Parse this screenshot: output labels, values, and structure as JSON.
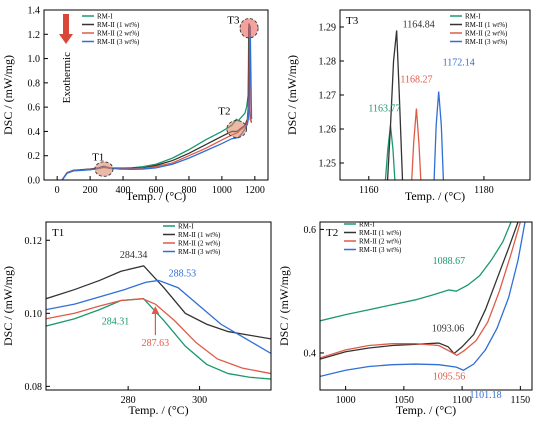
{
  "colors": {
    "rm1": "#1a9a6b",
    "rm2_1": "#333333",
    "rm2_2": "#e05a48",
    "rm2_3": "#2f6fd6",
    "exo_arrow": "#d9473a",
    "marker_t1_t2": "#d98060",
    "marker_t3": "#e8574f"
  },
  "chart_data": [
    {
      "id": "panel-overview",
      "type": "line",
      "xlabel": "Temp. / (°C)",
      "ylabel": "DSC / (mW/mg)",
      "xlim": [
        -80,
        1280
      ],
      "ylim": [
        0.0,
        1.4
      ],
      "xticks": [
        0,
        200,
        400,
        600,
        800,
        1000,
        1200
      ],
      "yticks": [
        0.0,
        0.2,
        0.4,
        0.6,
        0.8,
        1.0,
        1.2,
        1.4
      ],
      "ytick_labels": [
        "0.0",
        "0.2",
        "0.4",
        "0.6",
        "0.8",
        "1.0",
        "1.2",
        "1.4"
      ],
      "legend": [
        "RM-I",
        "RM-II (1 wt%)",
        "RM-II (2 wt%)",
        "RM-II (3 wt%)"
      ],
      "legend_position": "top-left",
      "exotherm_label": "Exothermic",
      "markers": [
        {
          "label": "T1",
          "x": 284,
          "y": 0.09,
          "rx_data": 55,
          "ry_data": 0.06,
          "color_key": "marker_t1_t2",
          "label_dx": -35,
          "label_dy": 0.07
        },
        {
          "label": "T2",
          "x": 1090,
          "y": 0.42,
          "rx_data": 60,
          "ry_data": 0.07,
          "color_key": "marker_t1_t2",
          "label_dx": -75,
          "label_dy": 0.12
        },
        {
          "label": "T3",
          "x": 1165,
          "y": 1.25,
          "rx_data": 55,
          "ry_data": 0.08,
          "color_key": "marker_t3",
          "label_dx": -95,
          "label_dy": 0.04
        }
      ],
      "series": [
        {
          "name": "RM-I",
          "color_key": "rm1",
          "x": [
            30,
            60,
            100,
            150,
            200,
            250,
            284,
            320,
            380,
            450,
            520,
            600,
            700,
            800,
            900,
            1000,
            1060,
            1088,
            1100,
            1140,
            1150,
            1160,
            1163,
            1165,
            1168,
            1172,
            1180
          ],
          "y": [
            0.0,
            0.06,
            0.08,
            0.082,
            0.085,
            0.095,
            0.104,
            0.095,
            0.095,
            0.1,
            0.11,
            0.13,
            0.18,
            0.25,
            0.33,
            0.4,
            0.45,
            0.5,
            0.49,
            0.55,
            0.6,
            0.7,
            1.26,
            0.9,
            0.6,
            0.55,
            0.5
          ]
        },
        {
          "name": "RM-II (1 wt%)",
          "color_key": "rm2_1",
          "x": [
            30,
            60,
            100,
            150,
            200,
            250,
            284,
            320,
            380,
            450,
            520,
            600,
            700,
            800,
            900,
            1000,
            1060,
            1093,
            1110,
            1140,
            1155,
            1160,
            1163,
            1165,
            1168,
            1172,
            1180
          ],
          "y": [
            0.0,
            0.06,
            0.08,
            0.085,
            0.09,
            0.1,
            0.113,
            0.1,
            0.098,
            0.098,
            0.1,
            0.12,
            0.16,
            0.22,
            0.29,
            0.36,
            0.4,
            0.4,
            0.42,
            0.45,
            0.5,
            0.6,
            1.0,
            1.289,
            0.6,
            0.5,
            0.48
          ]
        },
        {
          "name": "RM-II (2 wt%)",
          "color_key": "rm2_2",
          "x": [
            30,
            60,
            100,
            150,
            200,
            250,
            287,
            320,
            380,
            450,
            520,
            600,
            700,
            800,
            900,
            1000,
            1060,
            1095,
            1110,
            1140,
            1155,
            1160,
            1165,
            1168,
            1170,
            1172,
            1180
          ],
          "y": [
            0.0,
            0.06,
            0.078,
            0.082,
            0.087,
            0.097,
            0.104,
            0.097,
            0.093,
            0.092,
            0.095,
            0.11,
            0.14,
            0.2,
            0.26,
            0.33,
            0.37,
            0.39,
            0.41,
            0.44,
            0.48,
            0.55,
            0.7,
            1.266,
            0.6,
            0.5,
            0.47
          ]
        },
        {
          "name": "RM-II (3 wt%)",
          "color_key": "rm2_3",
          "x": [
            30,
            60,
            100,
            150,
            200,
            250,
            288,
            320,
            380,
            450,
            520,
            600,
            700,
            800,
            900,
            1000,
            1060,
            1101,
            1120,
            1140,
            1155,
            1160,
            1165,
            1168,
            1170,
            1172,
            1180
          ],
          "y": [
            0.0,
            0.055,
            0.075,
            0.08,
            0.085,
            0.095,
            0.109,
            0.1,
            0.09,
            0.088,
            0.09,
            0.1,
            0.13,
            0.18,
            0.24,
            0.3,
            0.34,
            0.35,
            0.38,
            0.42,
            0.46,
            0.5,
            0.6,
            0.8,
            1.0,
            1.271,
            0.5
          ]
        }
      ]
    },
    {
      "id": "panel-t3",
      "type": "line",
      "panel_tag": "T3",
      "xlabel": "Temp. / (°C)",
      "ylabel": "DSC / (mW/mg)",
      "xlim": [
        1155,
        1188
      ],
      "ylim": [
        1.245,
        1.295
      ],
      "xticks": [
        1160,
        1180
      ],
      "yticks": [
        1.25,
        1.26,
        1.27,
        1.28,
        1.29
      ],
      "ytick_labels": [
        "1.25",
        "1.26",
        "1.27",
        "1.28",
        "1.29"
      ],
      "legend": [
        "RM-I",
        "RM-II (1 wt%)",
        "RM-II (2 wt%)",
        "RM-II (3 wt%)"
      ],
      "legend_position": "top-right",
      "series": [
        {
          "name": "RM-I",
          "color_key": "rm1",
          "x": [
            1162.8,
            1163.3,
            1163.77,
            1164.2,
            1164.6
          ],
          "y": [
            1.243,
            1.254,
            1.261,
            1.254,
            1.243
          ]
        },
        {
          "name": "RM-II (1 wt%)",
          "color_key": "rm2_1",
          "x": [
            1163.2,
            1163.8,
            1164.3,
            1164.84,
            1165.3,
            1165.9
          ],
          "y": [
            1.243,
            1.262,
            1.28,
            1.289,
            1.27,
            1.243
          ]
        },
        {
          "name": "RM-II (2 wt%)",
          "color_key": "rm2_2",
          "x": [
            1167.4,
            1167.8,
            1168.27,
            1168.7,
            1169.1
          ],
          "y": [
            1.243,
            1.256,
            1.266,
            1.256,
            1.243
          ]
        },
        {
          "name": "RM-II (3 wt%)",
          "color_key": "rm2_3",
          "x": [
            1171.3,
            1171.7,
            1172.14,
            1172.6,
            1173.0
          ],
          "y": [
            1.243,
            1.261,
            1.271,
            1.261,
            1.243
          ]
        }
      ],
      "annotations": [
        {
          "text": "1164.84",
          "x": 1164.84,
          "y": 1.289,
          "color_key": "rm2_1",
          "anchor": "start",
          "dx": 6,
          "dy": -3
        },
        {
          "text": "1168.27",
          "x": 1168.27,
          "y": 1.266,
          "color_key": "rm2_2",
          "anchor": "middle",
          "dx": 0,
          "dy": -26
        },
        {
          "text": "1172.14",
          "x": 1172.14,
          "y": 1.271,
          "color_key": "rm2_3",
          "anchor": "start",
          "dx": 4,
          "dy": -26
        },
        {
          "text": "1163.77",
          "x": 1163.77,
          "y": 1.261,
          "color_key": "rm1",
          "anchor": "middle",
          "dx": -6,
          "dy": -14
        }
      ]
    },
    {
      "id": "panel-t1",
      "type": "line",
      "panel_tag": "T1",
      "xlabel": "Temp. / (°C)",
      "ylabel": "DSC / (mW/mg)",
      "xlim": [
        257,
        320
      ],
      "ylim": [
        0.079,
        0.125
      ],
      "xticks": [
        280,
        300
      ],
      "yticks": [
        0.08,
        0.1,
        0.12
      ],
      "ytick_labels": [
        "0.08",
        "0.10",
        "0.12"
      ],
      "legend": [
        "RM-I",
        "RM-II (1 wt%)",
        "RM-II (2 wt%)",
        "RM-II (3 wt%)"
      ],
      "legend_position": "top-right",
      "series": [
        {
          "name": "RM-I",
          "color_key": "rm1",
          "x": [
            257,
            265,
            272,
            278,
            284.31,
            290,
            296,
            302,
            308,
            314,
            320
          ],
          "y": [
            0.0965,
            0.0985,
            0.101,
            0.1035,
            0.104,
            0.098,
            0.091,
            0.086,
            0.0835,
            0.0825,
            0.082
          ]
        },
        {
          "name": "RM-II (1 wt%)",
          "color_key": "rm2_1",
          "x": [
            257,
            265,
            272,
            278,
            284.34,
            290,
            296,
            302,
            308,
            314,
            320
          ],
          "y": [
            0.104,
            0.1065,
            0.109,
            0.1115,
            0.113,
            0.107,
            0.1,
            0.097,
            0.095,
            0.094,
            0.093
          ]
        },
        {
          "name": "RM-II (2 wt%)",
          "color_key": "rm2_2",
          "x": [
            257,
            265,
            272,
            278,
            284,
            287.63,
            293,
            299,
            305,
            312,
            320
          ],
          "y": [
            0.0985,
            0.1,
            0.102,
            0.1035,
            0.104,
            0.1025,
            0.098,
            0.092,
            0.0875,
            0.085,
            0.0835
          ]
        },
        {
          "name": "RM-II (3 wt%)",
          "color_key": "rm2_3",
          "x": [
            257,
            265,
            272,
            279,
            285,
            288.53,
            294,
            300,
            306,
            313,
            320
          ],
          "y": [
            0.101,
            0.1025,
            0.1045,
            0.1065,
            0.1085,
            0.109,
            0.107,
            0.102,
            0.097,
            0.093,
            0.089
          ]
        }
      ],
      "annotations": [
        {
          "text": "284.34",
          "x": 284.34,
          "y": 0.113,
          "color_key": "rm2_1",
          "anchor": "middle",
          "dx": -10,
          "dy": -8
        },
        {
          "text": "288.53",
          "x": 288.53,
          "y": 0.109,
          "color_key": "rm2_3",
          "anchor": "start",
          "dx": 10,
          "dy": -4
        },
        {
          "text": "284.31",
          "x": 284.31,
          "y": 0.104,
          "color_key": "rm1",
          "anchor": "middle",
          "dx": -28,
          "dy": 26
        },
        {
          "text": "287.63",
          "x": 287.63,
          "y": 0.1025,
          "color_key": "rm2_2",
          "anchor": "middle",
          "dx": 0,
          "dy": 42
        }
      ],
      "arrows": [
        {
          "color_key": "rm2_2",
          "x": 287.63,
          "y": 0.1025,
          "from_dx": 0,
          "from_dy": 31
        }
      ]
    },
    {
      "id": "panel-t2",
      "type": "line",
      "panel_tag": "T2",
      "xlabel": "Temp. / (°C)",
      "ylabel": "DSC / (mW/mg)",
      "xlim": [
        978,
        1160
      ],
      "ylim": [
        0.34,
        0.612
      ],
      "xticks": [
        1000,
        1050,
        1100,
        1150
      ],
      "yticks": [
        0.4,
        0.6
      ],
      "ytick_labels": [
        "0.4",
        "0.6"
      ],
      "legend": [
        "RM-I",
        "RM-II (1 wt%)",
        "RM-II (2 wt%)",
        "RM-II (3 wt%)"
      ],
      "legend_position": "top-left",
      "series": [
        {
          "name": "RM-I",
          "color_key": "rm1",
          "x": [
            978,
            1000,
            1020,
            1040,
            1060,
            1075,
            1088.67,
            1095,
            1105,
            1115,
            1125,
            1135,
            1142
          ],
          "y": [
            0.452,
            0.462,
            0.47,
            0.478,
            0.486,
            0.494,
            0.502,
            0.5,
            0.51,
            0.525,
            0.55,
            0.58,
            0.612
          ]
        },
        {
          "name": "RM-II (1 wt%)",
          "color_key": "rm2_1",
          "x": [
            978,
            1000,
            1020,
            1040,
            1060,
            1080,
            1088,
            1093.06,
            1100,
            1110,
            1120,
            1130,
            1140,
            1148
          ],
          "y": [
            0.39,
            0.402,
            0.408,
            0.412,
            0.414,
            0.416,
            0.41,
            0.399,
            0.41,
            0.43,
            0.47,
            0.52,
            0.57,
            0.612
          ]
        },
        {
          "name": "RM-II (2 wt%)",
          "color_key": "rm2_2",
          "x": [
            978,
            1000,
            1020,
            1040,
            1060,
            1080,
            1090,
            1095.56,
            1102,
            1112,
            1122,
            1132,
            1142,
            1150
          ],
          "y": [
            0.392,
            0.405,
            0.412,
            0.415,
            0.415,
            0.412,
            0.402,
            0.396,
            0.404,
            0.42,
            0.45,
            0.5,
            0.56,
            0.612
          ]
        },
        {
          "name": "RM-II (3 wt%)",
          "color_key": "rm2_3",
          "x": [
            978,
            1000,
            1020,
            1040,
            1060,
            1080,
            1095,
            1101.18,
            1110,
            1120,
            1130,
            1140,
            1148,
            1154
          ],
          "y": [
            0.362,
            0.372,
            0.378,
            0.381,
            0.382,
            0.381,
            0.377,
            0.372,
            0.382,
            0.405,
            0.44,
            0.49,
            0.55,
            0.612
          ]
        }
      ],
      "annotations": [
        {
          "text": "1088.67",
          "x": 1088.67,
          "y": 0.502,
          "color_key": "rm1",
          "anchor": "middle",
          "dx": 0,
          "dy": -26
        },
        {
          "text": "1093.06",
          "x": 1093.06,
          "y": 0.399,
          "color_key": "rm2_1",
          "anchor": "middle",
          "dx": -6,
          "dy": -22
        },
        {
          "text": "1095.56",
          "x": 1095.56,
          "y": 0.396,
          "color_key": "rm2_2",
          "anchor": "middle",
          "dx": -8,
          "dy": 24
        },
        {
          "text": "1101.18",
          "x": 1101.18,
          "y": 0.372,
          "color_key": "rm2_3",
          "anchor": "start",
          "dx": 6,
          "dy": 28
        }
      ]
    }
  ]
}
